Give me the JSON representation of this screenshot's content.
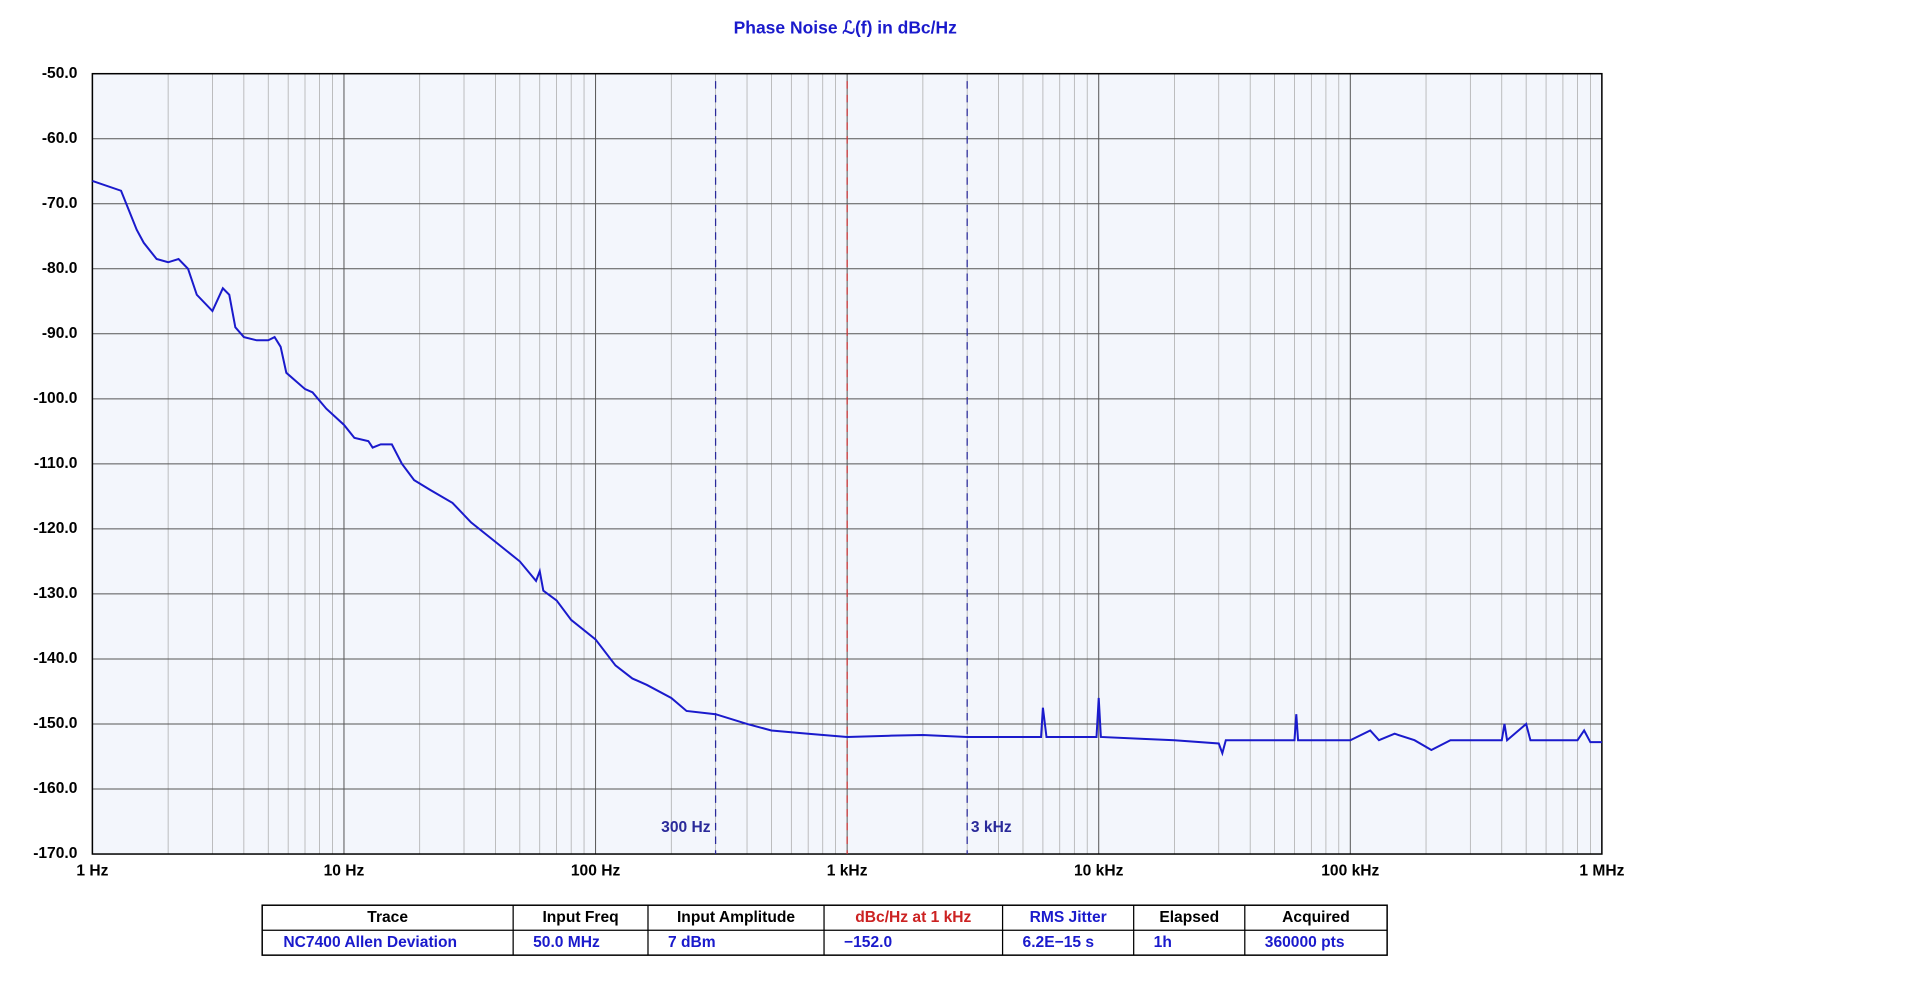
{
  "chart_data": {
    "type": "line",
    "title": "Phase Noise ℒ(f) in dBc/Hz",
    "log_x": true,
    "grid": true,
    "x": [
      1,
      1.3,
      1.5,
      1.6,
      1.8,
      2.0,
      2.2,
      2.4,
      2.6,
      3.0,
      3.3,
      3.5,
      3.7,
      4.0,
      4.5,
      5.0,
      5.3,
      5.6,
      5.9,
      7,
      7.5,
      8.5,
      10,
      11,
      12.5,
      13,
      14,
      15.5,
      17,
      19,
      22,
      27,
      32,
      40,
      50,
      58,
      60,
      62,
      70,
      80,
      100,
      120,
      140,
      160,
      200,
      230,
      300,
      400,
      500,
      700,
      1000,
      1500,
      2000,
      3000,
      5000,
      5900,
      6000,
      6200,
      9800,
      10000,
      10200,
      15000,
      20000,
      30000,
      31000,
      32000,
      60000,
      61000,
      62000,
      100000,
      120000,
      130000,
      150000,
      180000,
      210000,
      250000,
      400000,
      410000,
      420000,
      500000,
      520000,
      800000,
      850000,
      900000,
      1000000
    ],
    "series": [
      {
        "name": "NC7400 Allen Deviation",
        "color": "#1a1acc",
        "values": [
          -66.5,
          -68,
          -74,
          -76,
          -78.5,
          -79,
          -78.5,
          -80,
          -84,
          -86.5,
          -83,
          -84,
          -89,
          -90.5,
          -91,
          -91,
          -90.5,
          -92,
          -96,
          -98.5,
          -99,
          -101.5,
          -104,
          -106,
          -106.5,
          -107.5,
          -107,
          -107,
          -110,
          -112.5,
          -114,
          -116,
          -119,
          -122,
          -125,
          -128,
          -126.5,
          -129.5,
          -131,
          -134,
          -137,
          -141,
          -143,
          -144,
          -146,
          -148,
          -148.5,
          -150,
          -151,
          -151.5,
          -152,
          -151.8,
          -151.7,
          -152,
          -152,
          -152,
          -147.5,
          -152,
          -152,
          -146,
          -152,
          -152.3,
          -152.5,
          -153,
          -154.5,
          -152.5,
          -152.5,
          -148.5,
          -152.5,
          -152.5,
          -151,
          -152.5,
          -151.5,
          -152.5,
          -154,
          -152.5,
          -152.5,
          -150,
          -152.5,
          -150,
          -152.5,
          -152.5,
          -151,
          -152.8,
          -152.8
        ]
      }
    ],
    "xlim": [
      1,
      1000000
    ],
    "xticks": [
      {
        "value": 1,
        "label": "1 Hz"
      },
      {
        "value": 10,
        "label": "10 Hz"
      },
      {
        "value": 100,
        "label": "100 Hz"
      },
      {
        "value": 1000,
        "label": "1 kHz"
      },
      {
        "value": 10000,
        "label": "10 kHz"
      },
      {
        "value": 100000,
        "label": "100 kHz"
      },
      {
        "value": 1000000,
        "label": "1 MHz"
      }
    ],
    "ylim": [
      -170,
      -50
    ],
    "yticks": [
      {
        "value": -50,
        "label": "-50.0"
      },
      {
        "value": -60,
        "label": "-60.0"
      },
      {
        "value": -70,
        "label": "-70.0"
      },
      {
        "value": -80,
        "label": "-80.0"
      },
      {
        "value": -90,
        "label": "-90.0"
      },
      {
        "value": -100,
        "label": "-100.0"
      },
      {
        "value": -110,
        "label": "-110.0"
      },
      {
        "value": -120,
        "label": "-120.0"
      },
      {
        "value": -130,
        "label": "-130.0"
      },
      {
        "value": -140,
        "label": "-140.0"
      },
      {
        "value": -150,
        "label": "-150.0"
      },
      {
        "value": -160,
        "label": "-160.0"
      },
      {
        "value": -170,
        "label": "-170.0"
      }
    ],
    "markers": [
      {
        "x": 300,
        "label": "300 Hz",
        "color": "#2a2a9a"
      },
      {
        "x": 1000,
        "color": "#cc3333"
      },
      {
        "x": 3000,
        "label": "3 kHz",
        "color": "#2a2a9a"
      }
    ]
  },
  "table": {
    "columns": [
      "Trace",
      "Input Freq",
      "Input Amplitude",
      "dBc/Hz at 1 kHz",
      "RMS Jitter",
      "Elapsed",
      "Acquired"
    ],
    "rows": [
      [
        "NC7400 Allen Deviation",
        "50.0 MHz",
        "7 dBm",
        "−152.0",
        "6.2E−15 s",
        "1h",
        "360000 pts"
      ]
    ]
  }
}
